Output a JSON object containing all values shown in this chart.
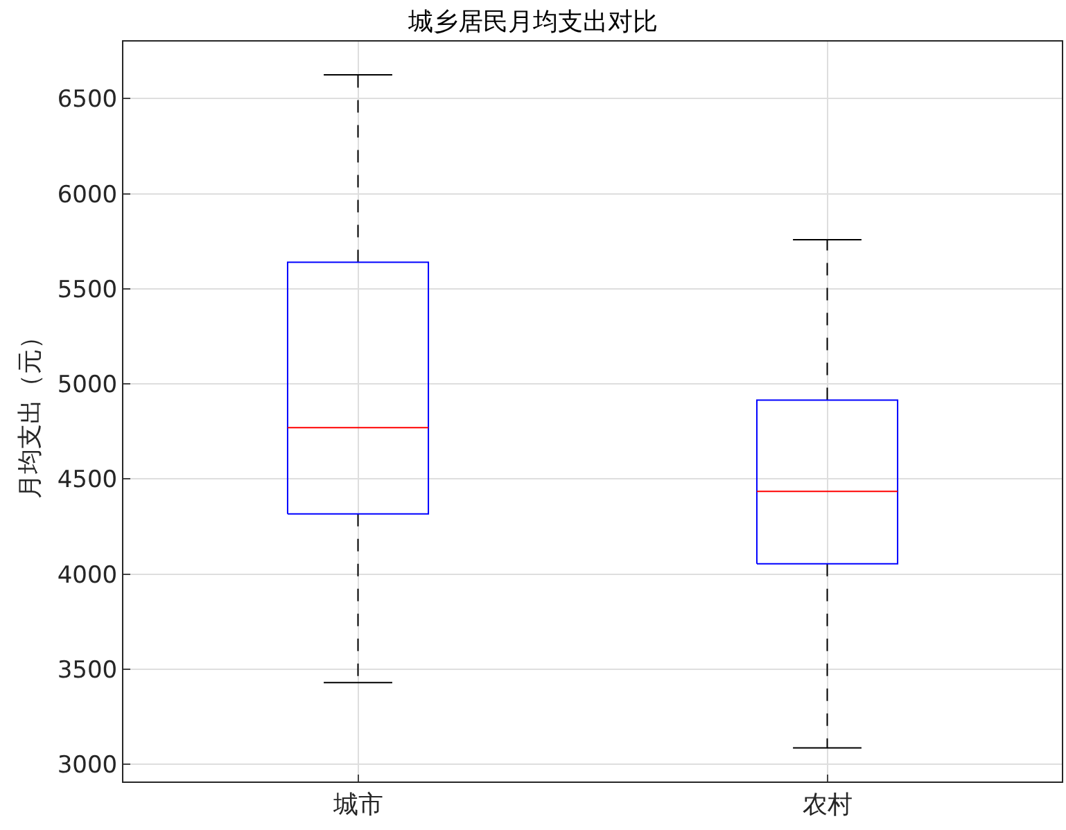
{
  "chart_data": {
    "type": "box",
    "title": "城乡居民月均支出对比",
    "ylabel": "月均支出（元）",
    "categories": [
      "城市",
      "农村"
    ],
    "boxes": [
      {
        "low": 3430,
        "q1": 4317,
        "median": 4770,
        "q3": 5640,
        "high": 6625
      },
      {
        "low": 3087,
        "q1": 4055,
        "median": 4435,
        "q3": 4915,
        "high": 5758
      }
    ],
    "ylim": [
      2910,
      6800
    ],
    "yticks": [
      3000,
      3500,
      4000,
      4500,
      5000,
      5500,
      6000,
      6500
    ],
    "grid": true
  }
}
